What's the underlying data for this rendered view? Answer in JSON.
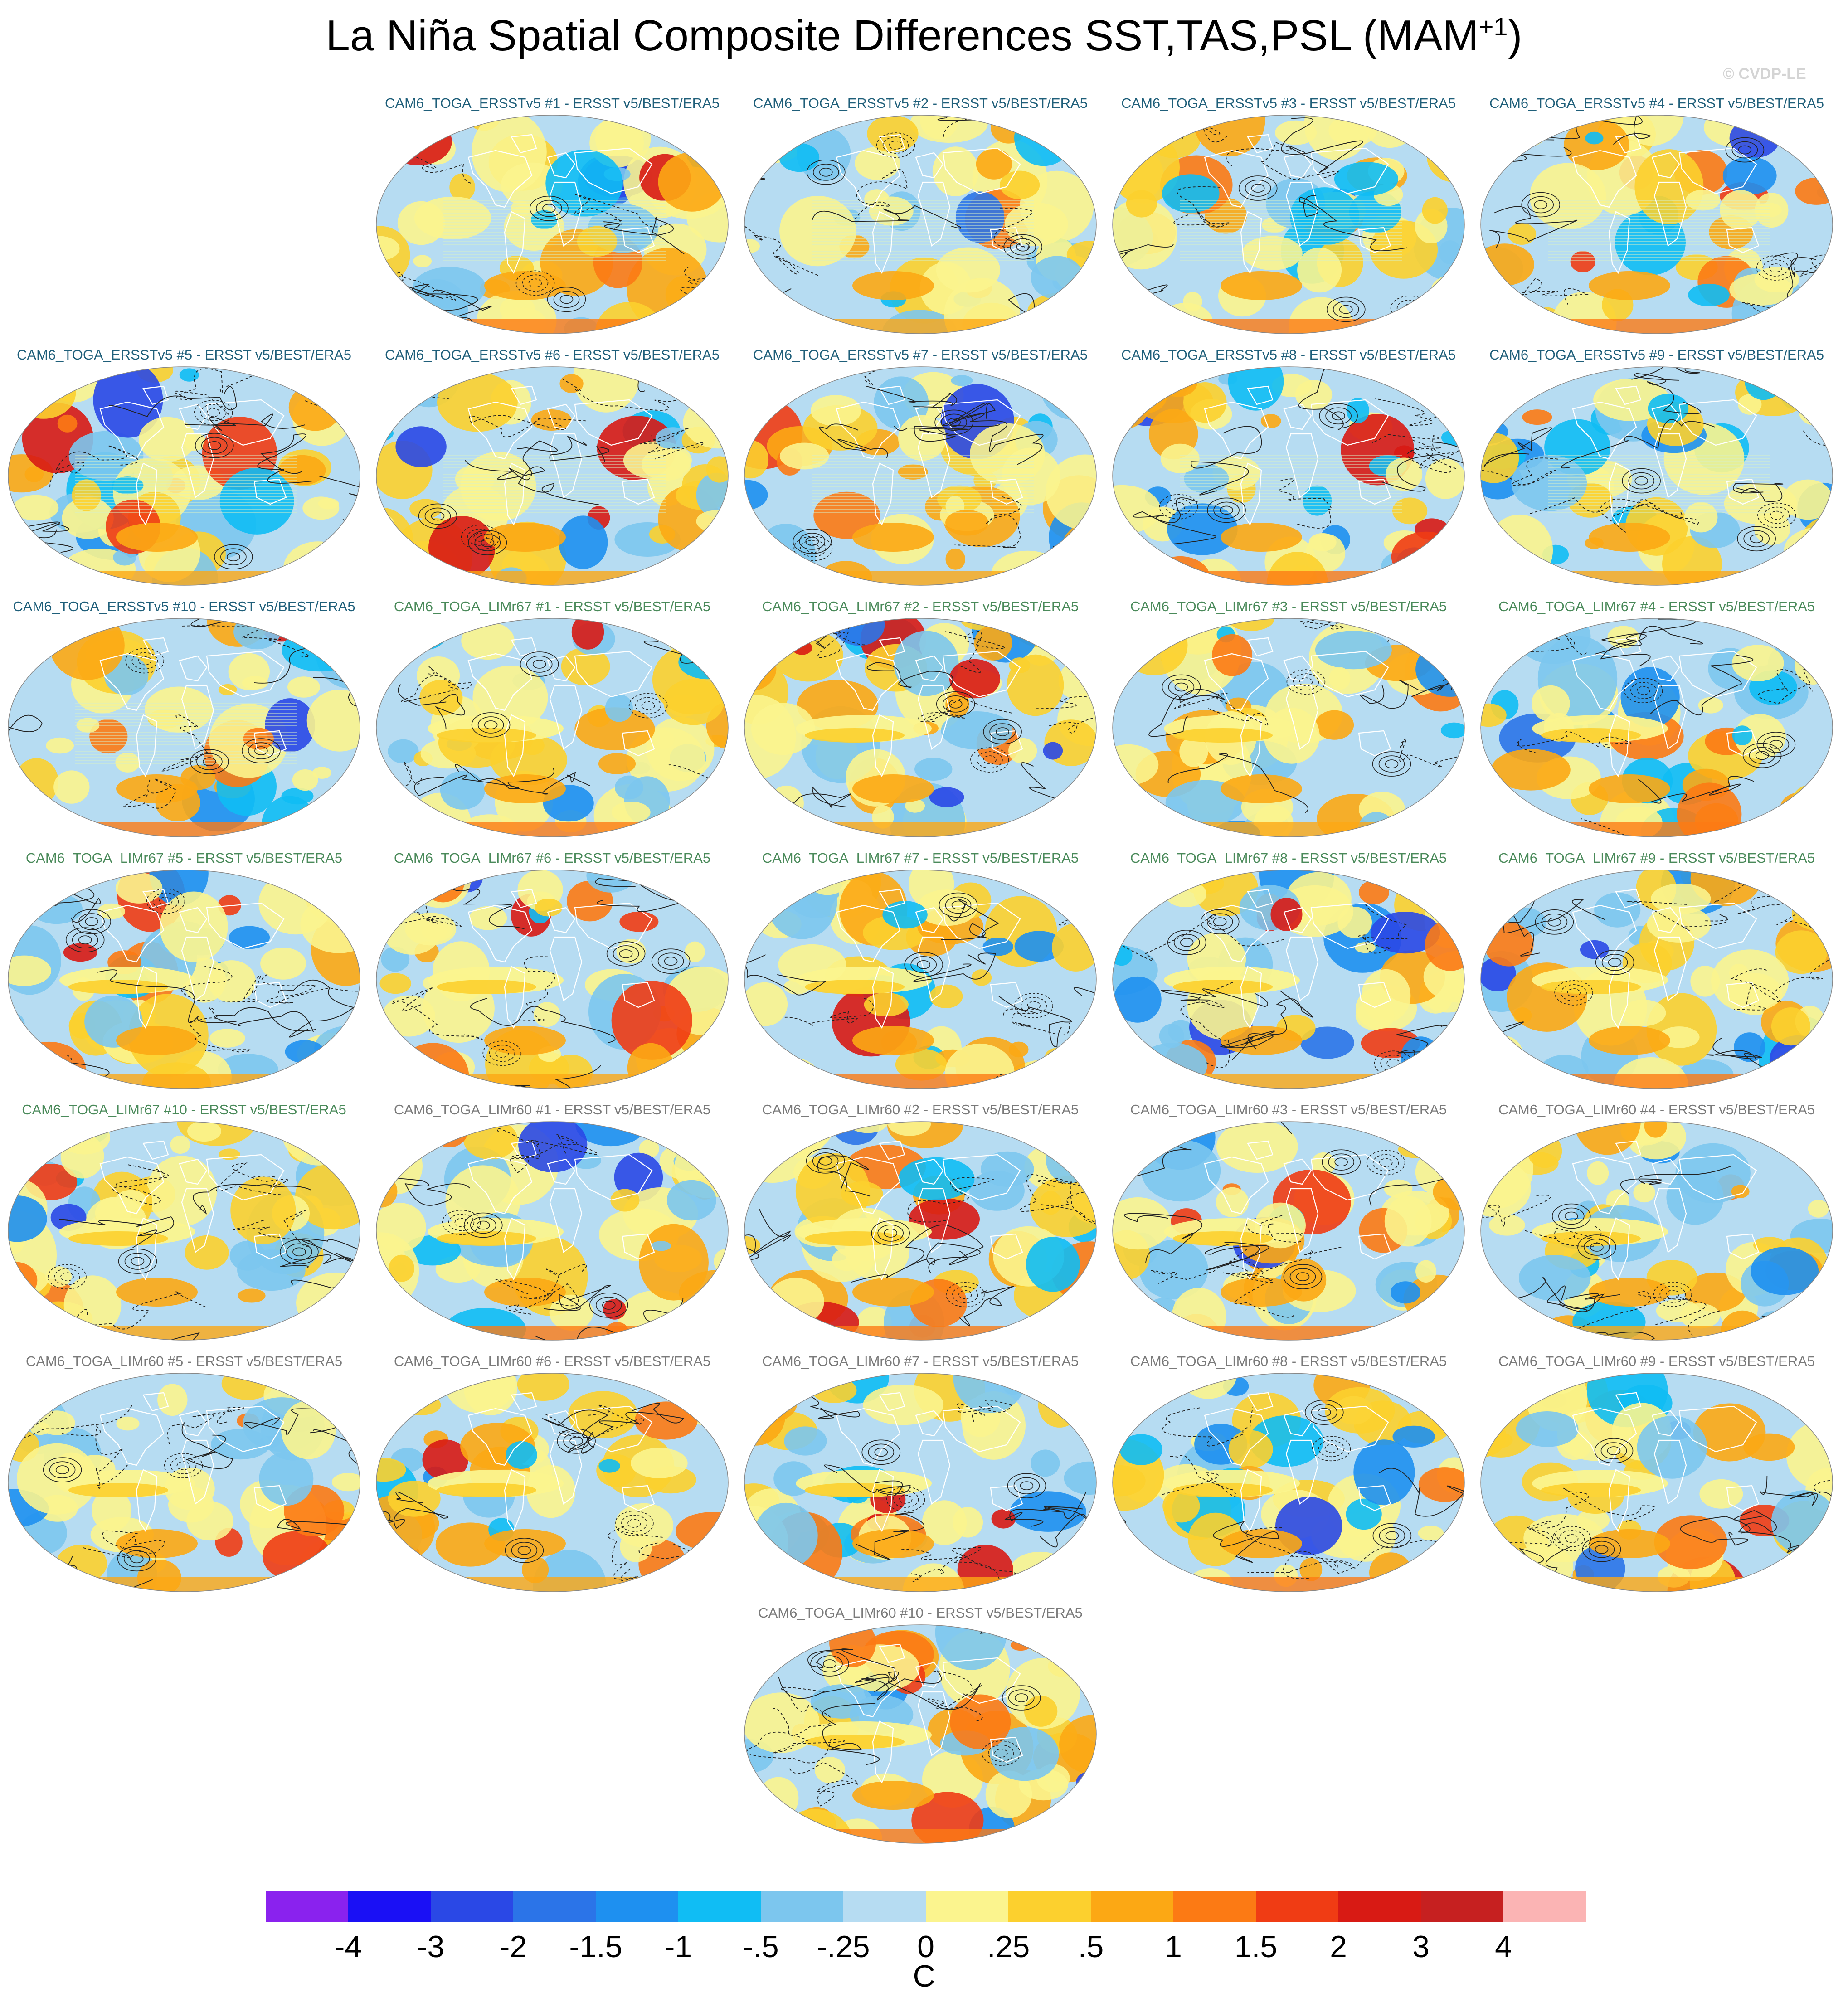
{
  "title": {
    "text": "La Niña Spatial Composite Differences SST,TAS,PSL (MAM",
    "superscript": "+1",
    "close": ")"
  },
  "watermark": "© CVDP-LE",
  "colors": {
    "ensemble_ERSSTv5": "#1f5f7a",
    "ensemble_LIMr67": "#4a8a5a",
    "ensemble_LIMr60": "#7a7a7a"
  },
  "chart_data": {
    "type": "heatmap",
    "projection": "Robinson global maps",
    "fields": "SST/TAS shading, PSL contours",
    "panels": [
      {
        "title": "CAM6_TOGA_ERSSTv5 #1 - ERSST v5/BEST/ERA5",
        "ensemble": "ERSSTv5",
        "member": 1
      },
      {
        "title": "CAM6_TOGA_ERSSTv5 #2 - ERSST v5/BEST/ERA5",
        "ensemble": "ERSSTv5",
        "member": 2
      },
      {
        "title": "CAM6_TOGA_ERSSTv5 #3 - ERSST v5/BEST/ERA5",
        "ensemble": "ERSSTv5",
        "member": 3
      },
      {
        "title": "CAM6_TOGA_ERSSTv5 #4 - ERSST v5/BEST/ERA5",
        "ensemble": "ERSSTv5",
        "member": 4
      },
      {
        "title": "CAM6_TOGA_ERSSTv5 #5 - ERSST v5/BEST/ERA5",
        "ensemble": "ERSSTv5",
        "member": 5
      },
      {
        "title": "CAM6_TOGA_ERSSTv5 #6 - ERSST v5/BEST/ERA5",
        "ensemble": "ERSSTv5",
        "member": 6
      },
      {
        "title": "CAM6_TOGA_ERSSTv5 #7 - ERSST v5/BEST/ERA5",
        "ensemble": "ERSSTv5",
        "member": 7
      },
      {
        "title": "CAM6_TOGA_ERSSTv5 #8 - ERSST v5/BEST/ERA5",
        "ensemble": "ERSSTv5",
        "member": 8
      },
      {
        "title": "CAM6_TOGA_ERSSTv5 #9 - ERSST v5/BEST/ERA5",
        "ensemble": "ERSSTv5",
        "member": 9
      },
      {
        "title": "CAM6_TOGA_ERSSTv5 #10 - ERSST v5/BEST/ERA5",
        "ensemble": "ERSSTv5",
        "member": 10
      },
      {
        "title": "CAM6_TOGA_LIMr67 #1 - ERSST v5/BEST/ERA5",
        "ensemble": "LIMr67",
        "member": 1
      },
      {
        "title": "CAM6_TOGA_LIMr67 #2 - ERSST v5/BEST/ERA5",
        "ensemble": "LIMr67",
        "member": 2
      },
      {
        "title": "CAM6_TOGA_LIMr67 #3 - ERSST v5/BEST/ERA5",
        "ensemble": "LIMr67",
        "member": 3
      },
      {
        "title": "CAM6_TOGA_LIMr67 #4 - ERSST v5/BEST/ERA5",
        "ensemble": "LIMr67",
        "member": 4
      },
      {
        "title": "CAM6_TOGA_LIMr67 #5 - ERSST v5/BEST/ERA5",
        "ensemble": "LIMr67",
        "member": 5
      },
      {
        "title": "CAM6_TOGA_LIMr67 #6 - ERSST v5/BEST/ERA5",
        "ensemble": "LIMr67",
        "member": 6
      },
      {
        "title": "CAM6_TOGA_LIMr67 #7 - ERSST v5/BEST/ERA5",
        "ensemble": "LIMr67",
        "member": 7
      },
      {
        "title": "CAM6_TOGA_LIMr67 #8 - ERSST v5/BEST/ERA5",
        "ensemble": "LIMr67",
        "member": 8
      },
      {
        "title": "CAM6_TOGA_LIMr67 #9 - ERSST v5/BEST/ERA5",
        "ensemble": "LIMr67",
        "member": 9
      },
      {
        "title": "CAM6_TOGA_LIMr67 #10 - ERSST v5/BEST/ERA5",
        "ensemble": "LIMr67",
        "member": 10
      },
      {
        "title": "CAM6_TOGA_LIMr60 #1 - ERSST v5/BEST/ERA5",
        "ensemble": "LIMr60",
        "member": 1
      },
      {
        "title": "CAM6_TOGA_LIMr60 #2 - ERSST v5/BEST/ERA5",
        "ensemble": "LIMr60",
        "member": 2
      },
      {
        "title": "CAM6_TOGA_LIMr60 #3 - ERSST v5/BEST/ERA5",
        "ensemble": "LIMr60",
        "member": 3
      },
      {
        "title": "CAM6_TOGA_LIMr60 #4 - ERSST v5/BEST/ERA5",
        "ensemble": "LIMr60",
        "member": 4
      },
      {
        "title": "CAM6_TOGA_LIMr60 #5 - ERSST v5/BEST/ERA5",
        "ensemble": "LIMr60",
        "member": 5
      },
      {
        "title": "CAM6_TOGA_LIMr60 #6 - ERSST v5/BEST/ERA5",
        "ensemble": "LIMr60",
        "member": 6
      },
      {
        "title": "CAM6_TOGA_LIMr60 #7 - ERSST v5/BEST/ERA5",
        "ensemble": "LIMr60",
        "member": 7
      },
      {
        "title": "CAM6_TOGA_LIMr60 #8 - ERSST v5/BEST/ERA5",
        "ensemble": "LIMr60",
        "member": 8
      },
      {
        "title": "CAM6_TOGA_LIMr60 #9 - ERSST v5/BEST/ERA5",
        "ensemble": "LIMr60",
        "member": 9
      },
      {
        "title": "CAM6_TOGA_LIMr60 #10 - ERSST v5/BEST/ERA5",
        "ensemble": "LIMr60",
        "member": 10
      }
    ],
    "colorbar": {
      "levels": [
        "-4",
        "-3",
        "-2",
        "-1.5",
        "-1",
        "-.5",
        "-.25",
        "0",
        ".25",
        ".5",
        "1",
        "1.5",
        "2",
        "3",
        "4"
      ],
      "colors": [
        "#8a22ee",
        "#1a10f5",
        "#2a48e6",
        "#2b74e8",
        "#1e90f0",
        "#10bdf4",
        "#7cc6ee",
        "#b6dcf2",
        "#fbf48e",
        "#fcd02e",
        "#fca814",
        "#fc7a14",
        "#f03c14",
        "#d81a14",
        "#c62020",
        "#fbb4b4"
      ],
      "unit": "C"
    }
  }
}
